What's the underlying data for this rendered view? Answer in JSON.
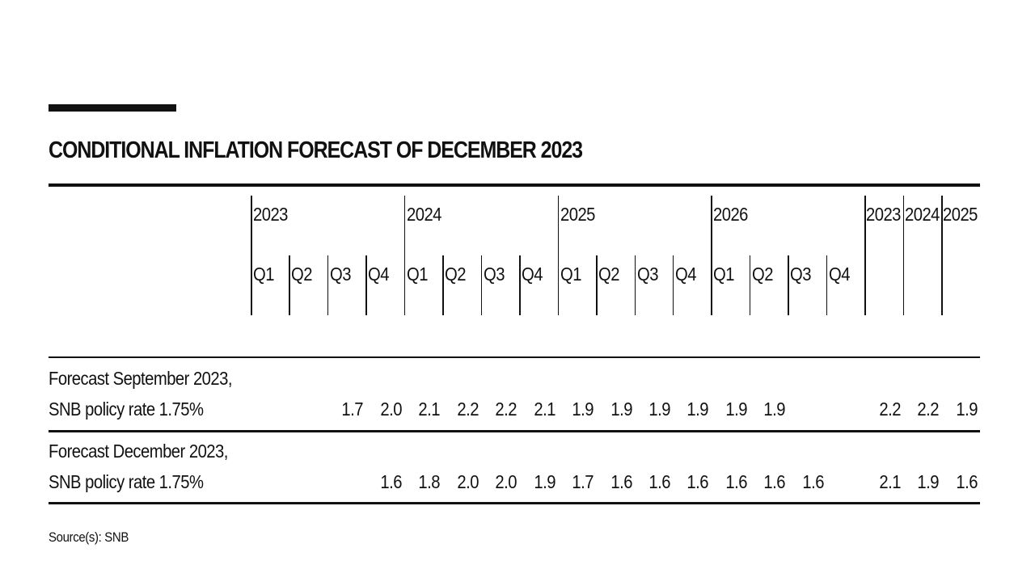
{
  "title": "CONDITIONAL INFLATION FORECAST OF DECEMBER 2023",
  "source": "Source(s): SNB",
  "chart_data": {
    "type": "table",
    "title": "CONDITIONAL INFLATION FORECAST OF DECEMBER 2023",
    "quarterly_years": [
      "2023",
      "2024",
      "2025",
      "2026"
    ],
    "quarters": [
      "Q1",
      "Q2",
      "Q3",
      "Q4"
    ],
    "annual_years": [
      "2023",
      "2024",
      "2025"
    ],
    "rows": [
      {
        "label_line1": "Forecast September 2023,",
        "label_line2": "SNB policy rate 1.75%",
        "quarterly": [
          null,
          null,
          "1.7",
          "2.0",
          "2.1",
          "2.2",
          "2.2",
          "2.1",
          "1.9",
          "1.9",
          "1.9",
          "1.9",
          "1.9",
          "1.9",
          null,
          null
        ],
        "annual": [
          "2.2",
          "2.2",
          "1.9"
        ]
      },
      {
        "label_line1": "Forecast December 2023,",
        "label_line2": "SNB policy rate 1.75%",
        "quarterly": [
          null,
          null,
          null,
          "1.6",
          "1.8",
          "2.0",
          "2.0",
          "1.9",
          "1.7",
          "1.6",
          "1.6",
          "1.6",
          "1.6",
          "1.6",
          "1.6",
          null
        ],
        "annual": [
          "2.1",
          "1.9",
          "1.6"
        ]
      }
    ],
    "source": "Source(s): SNB"
  }
}
